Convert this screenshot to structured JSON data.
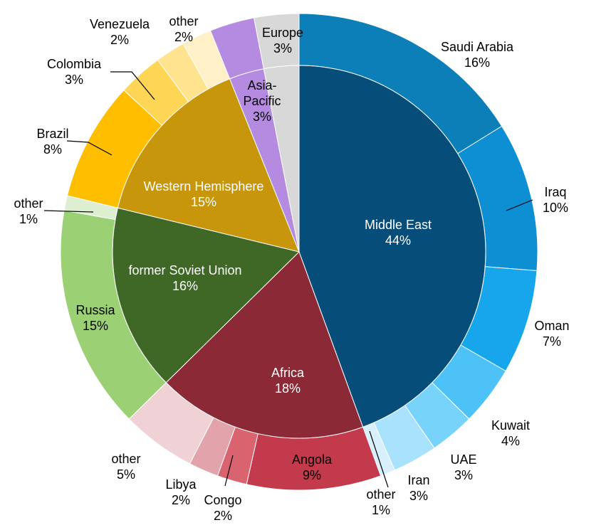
{
  "chart_data": {
    "type": "pie",
    "subtype": "nested-donut",
    "title": "",
    "start": "12 o'clock",
    "direction": "clockwise",
    "inner_ring": [
      {
        "label": "Middle East",
        "value": 44,
        "value_label": "44%",
        "color": "#064D7A",
        "text_color": "#ffffff"
      },
      {
        "label": "Africa",
        "value": 18,
        "value_label": "18%",
        "color": "#8B2A36",
        "text_color": "#ffffff"
      },
      {
        "label": "former  Soviet  Union",
        "value": 16,
        "value_label": "16%",
        "color": "#3F6827",
        "text_color": "#ffffff"
      },
      {
        "label": "Western Hemisphere",
        "value": 15,
        "value_label": "15%",
        "color": "#C7960B",
        "text_color": "#ffffff"
      },
      {
        "label": "Asia-\nPacific",
        "value": 3,
        "value_label": "3%",
        "color": "#B48BE0",
        "text_color": "#000000"
      },
      {
        "label": "Europe",
        "value": 3,
        "value_label": "3%",
        "color": "#D8D8D8",
        "text_color": "#000000"
      }
    ],
    "outer_ring": [
      {
        "label": "Saudi  Arabia",
        "value": 16,
        "value_label": "16%",
        "color": "#0C7FB8"
      },
      {
        "label": "Iraq",
        "value": 10,
        "value_label": "10%",
        "color": "#0E8FD3"
      },
      {
        "label": "Oman",
        "value": 7,
        "value_label": "7%",
        "color": "#17A6EC"
      },
      {
        "label": "Kuwait",
        "value": 4,
        "value_label": "4%",
        "color": "#4CC2F7"
      },
      {
        "label": "UAE",
        "value": 3,
        "value_label": "3%",
        "color": "#78D3FA"
      },
      {
        "label": "Iran",
        "value": 3,
        "value_label": "3%",
        "color": "#A9E2FC"
      },
      {
        "label": "other",
        "value": 1,
        "value_label": "1%",
        "color": "#D8F0FB"
      },
      {
        "label": "Angola",
        "value": 9,
        "value_label": "9%",
        "color": "#C23A4B"
      },
      {
        "label": "Congo",
        "value": 2,
        "value_label": "2%",
        "color": "#D9636F"
      },
      {
        "label": "Libya",
        "value": 2,
        "value_label": "2%",
        "color": "#E3A3AB"
      },
      {
        "label": "other",
        "value": 5,
        "value_label": "5%",
        "color": "#F0D2D6"
      },
      {
        "label": "Russia",
        "value": 15,
        "value_label": "15%",
        "color": "#9BD174"
      },
      {
        "label": "other",
        "value": 1,
        "value_label": "1%",
        "color": "#DDEFD0"
      },
      {
        "label": "Brazil",
        "value": 8,
        "value_label": "8%",
        "color": "#FFBF00"
      },
      {
        "label": "Colombia",
        "value": 3,
        "value_label": "3%",
        "color": "#FFD556"
      },
      {
        "label": "Venezuela",
        "value": 2,
        "value_label": "2%",
        "color": "#FFE38F"
      },
      {
        "label": "other",
        "value": 2,
        "value_label": "2%",
        "color": "#FFF0C8"
      },
      {
        "label": "Asia-Pacific",
        "value": 3,
        "value_label": "",
        "color": "#B48BE0"
      },
      {
        "label": "Europe",
        "value": 3,
        "value_label": "",
        "color": "#D8D8D8"
      }
    ]
  }
}
